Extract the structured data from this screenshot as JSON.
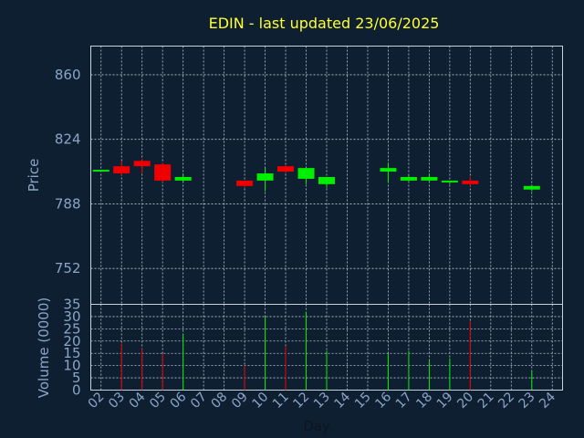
{
  "chart_data": {
    "type": "candlestick",
    "title": "EDIN - last updated 23/06/2025",
    "xlabel": "Day",
    "price_ylabel": "Price",
    "volume_ylabel": "Volume (0000)",
    "x_ticks": [
      "02",
      "03",
      "04",
      "05",
      "06",
      "07",
      "08",
      "09",
      "10",
      "11",
      "12",
      "13",
      "14",
      "15",
      "16",
      "17",
      "18",
      "19",
      "20",
      "21",
      "22",
      "23",
      "24"
    ],
    "price_axis": {
      "ylim": [
        732,
        876
      ],
      "ticks": [
        752,
        788,
        824,
        860
      ]
    },
    "volume_axis": {
      "ylim": [
        0,
        35
      ],
      "ticks": [
        0,
        5,
        10,
        15,
        20,
        25,
        30,
        35
      ]
    },
    "candles": [
      {
        "day": "02",
        "open": 807,
        "close": 807,
        "high": 807,
        "low": 807,
        "volume": 0
      },
      {
        "day": "03",
        "open": 809,
        "close": 805,
        "high": 812,
        "low": 804,
        "volume": 19
      },
      {
        "day": "04",
        "open": 812,
        "close": 809,
        "high": 813,
        "low": 805,
        "volume": 17
      },
      {
        "day": "05",
        "open": 810,
        "close": 801,
        "high": 811,
        "low": 800,
        "volume": 15
      },
      {
        "day": "06",
        "open": 801,
        "close": 803,
        "high": 805,
        "low": 800,
        "volume": 23
      },
      {
        "day": "09",
        "open": 801,
        "close": 798,
        "high": 801,
        "low": 797,
        "volume": 10
      },
      {
        "day": "10",
        "open": 801,
        "close": 805,
        "high": 808,
        "low": 795,
        "volume": 30
      },
      {
        "day": "11",
        "open": 809,
        "close": 806,
        "high": 810,
        "low": 805,
        "volume": 18
      },
      {
        "day": "12",
        "open": 802,
        "close": 808,
        "high": 808,
        "low": 799,
        "volume": 32
      },
      {
        "day": "13",
        "open": 799,
        "close": 803,
        "high": 803,
        "low": 797,
        "volume": 16
      },
      {
        "day": "16",
        "open": 806,
        "close": 808,
        "high": 811,
        "low": 800,
        "volume": 15
      },
      {
        "day": "17",
        "open": 801,
        "close": 803,
        "high": 804,
        "low": 800,
        "volume": 16
      },
      {
        "day": "18",
        "open": 801,
        "close": 803,
        "high": 805,
        "low": 800,
        "volume": 12
      },
      {
        "day": "19",
        "open": 800,
        "close": 801,
        "high": 801,
        "low": 799,
        "volume": 13
      },
      {
        "day": "20",
        "open": 801,
        "close": 799,
        "high": 803,
        "low": 798,
        "volume": 28
      },
      {
        "day": "23",
        "open": 796,
        "close": 798,
        "high": 798,
        "low": 795,
        "volume": 8
      }
    ],
    "grid": true,
    "colors": {
      "background": "#0f1f32",
      "axis_text": "#8aa5c6",
      "title": "#ffff33",
      "grid": "#b9c3cf",
      "frame": "#c9d1db",
      "up": "#00ee00",
      "down": "#ee0000"
    }
  }
}
